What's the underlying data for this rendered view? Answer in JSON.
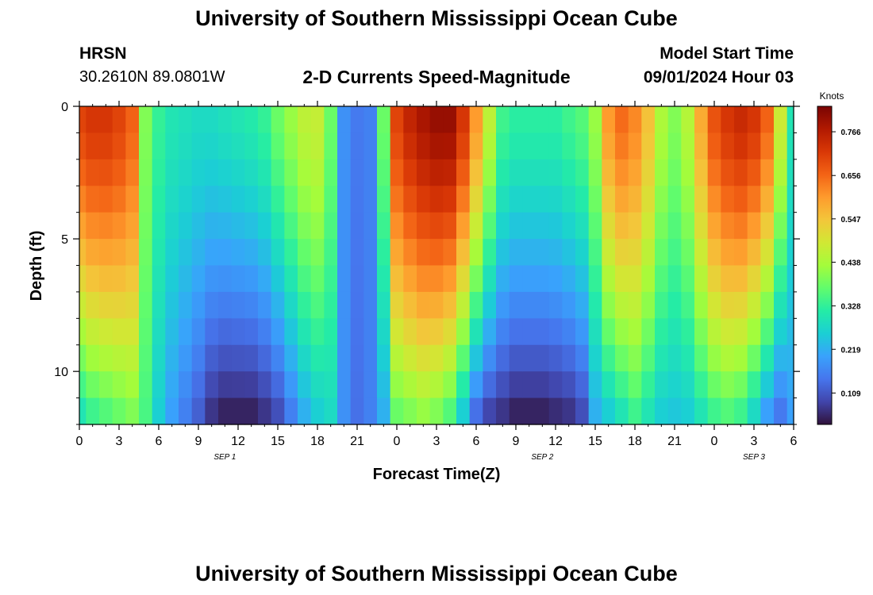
{
  "header": {
    "title_top": "University of Southern Mississippi Ocean Cube",
    "title_bottom": "University of Southern Mississippi Ocean Cube",
    "station": "HRSN",
    "coords": "30.2610N  89.0801W",
    "plot_title": "2-D Currents Speed-Magnitude",
    "model_start_label": "Model Start Time",
    "model_start_value": "09/01/2024 Hour 03"
  },
  "chart_data": {
    "type": "heatmap",
    "title": "2-D Currents Speed-Magnitude",
    "xlabel": "Forecast Time(Z)",
    "ylabel": "Depth (ft)",
    "x_ticks": [
      "0",
      "3",
      "6",
      "9",
      "12",
      "15",
      "18",
      "21",
      "0",
      "3",
      "6",
      "9",
      "12",
      "15",
      "18",
      "21",
      "0",
      "3",
      "6"
    ],
    "x_hour_range": [
      0,
      54
    ],
    "date_labels": [
      {
        "label": "SEP 1",
        "hour": 11
      },
      {
        "label": "SEP 2",
        "hour": 35
      },
      {
        "label": "SEP 3",
        "hour": 51
      }
    ],
    "y_ticks": [
      0,
      5,
      10
    ],
    "ylim": [
      0,
      12
    ],
    "y_inverted": true,
    "depth_levels_ft": [
      0.5,
      1.5,
      2.5,
      3.5,
      4.5,
      5.5,
      6.5,
      7.5,
      8.5,
      9.5,
      10.5,
      11.5
    ],
    "colorbar": {
      "title": "Knots",
      "ticks": [
        0.766,
        0.656,
        0.547,
        0.438,
        0.328,
        0.219,
        0.109
      ],
      "range": [
        0.03,
        0.83
      ],
      "colormap": "turbo"
    },
    "time_series": {
      "hours": [
        0,
        1,
        2,
        3,
        4,
        5,
        6,
        7,
        8,
        9,
        10,
        11,
        12,
        13,
        14,
        15,
        16,
        17,
        18,
        19,
        20,
        21,
        22,
        23,
        24,
        25,
        26,
        27,
        28,
        29,
        30,
        31,
        32,
        33,
        34,
        35,
        36,
        37,
        38,
        39,
        40,
        41,
        42,
        43,
        44,
        45,
        46,
        47,
        48,
        49,
        50,
        51,
        52,
        53,
        54
      ],
      "surface_knots": [
        0.7,
        0.72,
        0.72,
        0.7,
        0.66,
        0.4,
        0.33,
        0.3,
        0.29,
        0.28,
        0.28,
        0.29,
        0.3,
        0.31,
        0.33,
        0.38,
        0.42,
        0.46,
        0.47,
        0.38,
        0.18,
        0.15,
        0.16,
        0.38,
        0.7,
        0.75,
        0.78,
        0.8,
        0.8,
        0.72,
        0.6,
        0.46,
        0.34,
        0.32,
        0.32,
        0.32,
        0.32,
        0.34,
        0.36,
        0.42,
        0.6,
        0.65,
        0.62,
        0.55,
        0.44,
        0.4,
        0.45,
        0.58,
        0.68,
        0.72,
        0.74,
        0.72,
        0.66,
        0.48,
        0.3
      ],
      "bottom_knots": [
        0.3,
        0.34,
        0.36,
        0.38,
        0.4,
        0.35,
        0.26,
        0.2,
        0.16,
        0.12,
        0.07,
        0.05,
        0.05,
        0.05,
        0.07,
        0.1,
        0.16,
        0.22,
        0.26,
        0.28,
        0.18,
        0.14,
        0.16,
        0.22,
        0.38,
        0.4,
        0.42,
        0.4,
        0.36,
        0.26,
        0.14,
        0.09,
        0.07,
        0.05,
        0.05,
        0.05,
        0.06,
        0.07,
        0.1,
        0.22,
        0.26,
        0.3,
        0.34,
        0.3,
        0.26,
        0.25,
        0.26,
        0.3,
        0.34,
        0.36,
        0.34,
        0.28,
        0.2,
        0.15,
        0.2
      ]
    }
  },
  "colors": {
    "colormap_stops": [
      "#30123b",
      "#4145ab",
      "#4675ed",
      "#39a2fc",
      "#1bcfd4",
      "#24eca6",
      "#61fc6c",
      "#a4fc3b",
      "#d1e834",
      "#f3c63a",
      "#fe9b2d",
      "#f36315",
      "#d93806",
      "#b11901",
      "#7a0403"
    ]
  }
}
